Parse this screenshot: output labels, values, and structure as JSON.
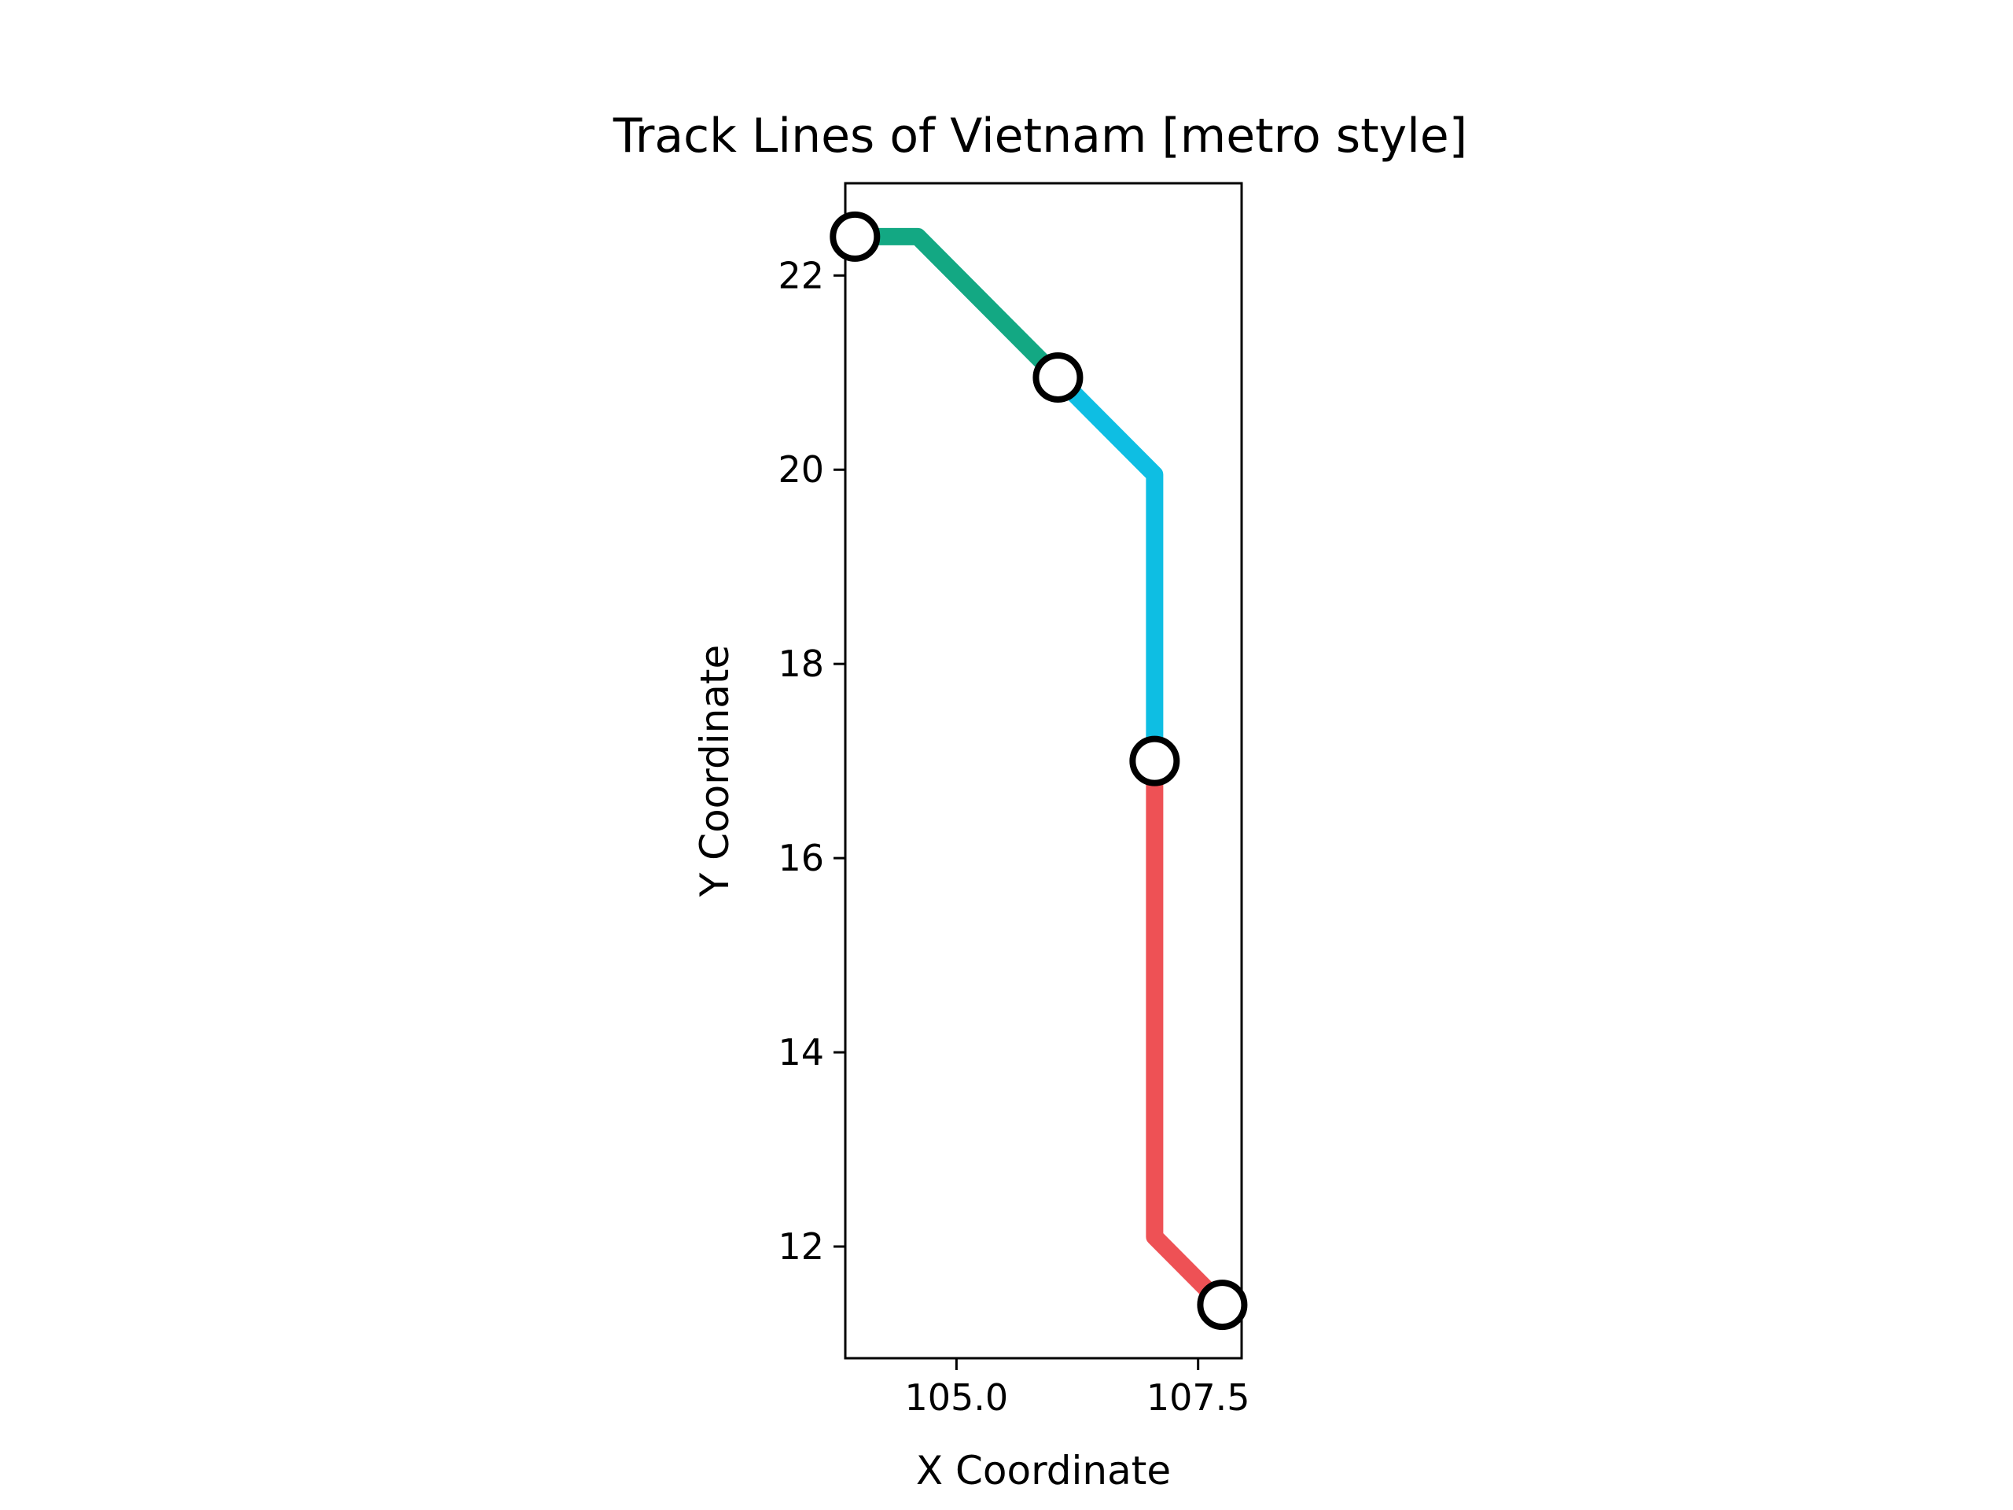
{
  "chart_data": {
    "type": "line",
    "title": "Track Lines of Vietnam [metro style]",
    "xlabel": "X Coordinate",
    "ylabel": "Y Coordinate",
    "xlim": [
      103.85,
      107.95
    ],
    "ylim": [
      10.85,
      22.95
    ],
    "xticks": [
      105.0,
      107.5
    ],
    "xtick_labels": [
      "105.0",
      "107.5"
    ],
    "yticks": [
      12,
      14,
      16,
      18,
      20,
      22
    ],
    "ytick_labels": [
      "12",
      "14",
      "16",
      "18",
      "20",
      "22"
    ],
    "grid": false,
    "series": [
      {
        "color": "#13A883",
        "points": [
          [
            103.95,
            22.4
          ],
          [
            104.6,
            22.4
          ],
          [
            106.05,
            20.95
          ]
        ]
      },
      {
        "color": "#0EBEE3",
        "points": [
          [
            106.05,
            20.95
          ],
          [
            107.05,
            19.95
          ],
          [
            107.05,
            17.0
          ]
        ]
      },
      {
        "color": "#EE5155",
        "points": [
          [
            107.05,
            17.0
          ],
          [
            107.05,
            12.1
          ],
          [
            107.75,
            11.4
          ]
        ]
      }
    ],
    "stations": [
      {
        "x": 103.95,
        "y": 22.4
      },
      {
        "x": 106.05,
        "y": 20.95
      },
      {
        "x": 107.05,
        "y": 17.0
      },
      {
        "x": 107.75,
        "y": 11.4
      }
    ]
  }
}
